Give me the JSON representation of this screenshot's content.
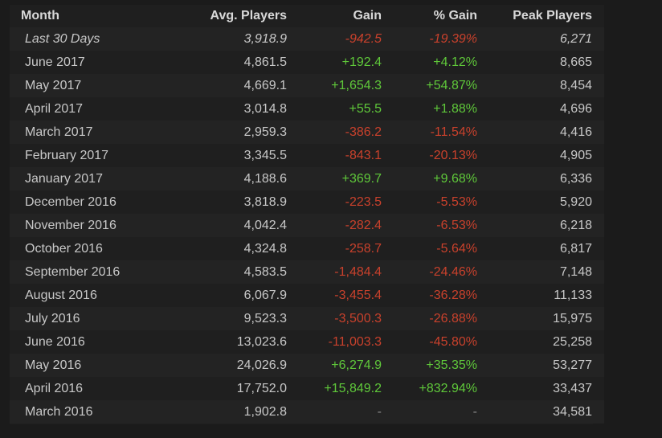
{
  "table": {
    "headers": {
      "month": "Month",
      "avg": "Avg. Players",
      "gain": "Gain",
      "pct": "% Gain",
      "peak": "Peak Players"
    },
    "rows": [
      {
        "month": "Last 30 Days",
        "avg": "3,918.9",
        "gain": "-942.5",
        "pct": "-19.39%",
        "peak": "6,271",
        "trend": "neg",
        "italic": true
      },
      {
        "month": "June 2017",
        "avg": "4,861.5",
        "gain": "+192.4",
        "pct": "+4.12%",
        "peak": "8,665",
        "trend": "pos"
      },
      {
        "month": "May 2017",
        "avg": "4,669.1",
        "gain": "+1,654.3",
        "pct": "+54.87%",
        "peak": "8,454",
        "trend": "pos"
      },
      {
        "month": "April 2017",
        "avg": "3,014.8",
        "gain": "+55.5",
        "pct": "+1.88%",
        "peak": "4,696",
        "trend": "pos"
      },
      {
        "month": "March 2017",
        "avg": "2,959.3",
        "gain": "-386.2",
        "pct": "-11.54%",
        "peak": "4,416",
        "trend": "neg"
      },
      {
        "month": "February 2017",
        "avg": "3,345.5",
        "gain": "-843.1",
        "pct": "-20.13%",
        "peak": "4,905",
        "trend": "neg"
      },
      {
        "month": "January 2017",
        "avg": "4,188.6",
        "gain": "+369.7",
        "pct": "+9.68%",
        "peak": "6,336",
        "trend": "pos"
      },
      {
        "month": "December 2016",
        "avg": "3,818.9",
        "gain": "-223.5",
        "pct": "-5.53%",
        "peak": "5,920",
        "trend": "neg"
      },
      {
        "month": "November 2016",
        "avg": "4,042.4",
        "gain": "-282.4",
        "pct": "-6.53%",
        "peak": "6,218",
        "trend": "neg"
      },
      {
        "month": "October 2016",
        "avg": "4,324.8",
        "gain": "-258.7",
        "pct": "-5.64%",
        "peak": "6,817",
        "trend": "neg"
      },
      {
        "month": "September 2016",
        "avg": "4,583.5",
        "gain": "-1,484.4",
        "pct": "-24.46%",
        "peak": "7,148",
        "trend": "neg"
      },
      {
        "month": "August 2016",
        "avg": "6,067.9",
        "gain": "-3,455.4",
        "pct": "-36.28%",
        "peak": "11,133",
        "trend": "neg"
      },
      {
        "month": "July 2016",
        "avg": "9,523.3",
        "gain": "-3,500.3",
        "pct": "-26.88%",
        "peak": "15,975",
        "trend": "neg"
      },
      {
        "month": "June 2016",
        "avg": "13,023.6",
        "gain": "-11,003.3",
        "pct": "-45.80%",
        "peak": "25,258",
        "trend": "neg"
      },
      {
        "month": "May 2016",
        "avg": "24,026.9",
        "gain": "+6,274.9",
        "pct": "+35.35%",
        "peak": "53,277",
        "trend": "pos"
      },
      {
        "month": "April 2016",
        "avg": "17,752.0",
        "gain": "+15,849.2",
        "pct": "+832.94%",
        "peak": "33,437",
        "trend": "pos"
      },
      {
        "month": "March 2016",
        "avg": "1,902.8",
        "gain": "-",
        "pct": "-",
        "peak": "34,581",
        "trend": "neu"
      }
    ]
  },
  "colors": {
    "positive": "#5fc83a",
    "negative": "#c9412c",
    "neutral": "#8a8a8a"
  }
}
